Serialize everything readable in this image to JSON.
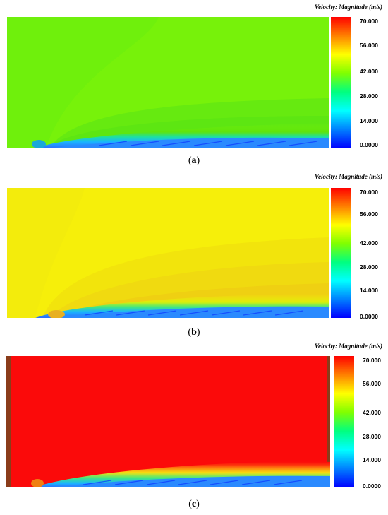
{
  "panels": [
    {
      "id": "a",
      "colorbar_title": "Velocity: Magnitude (m/s)",
      "ticks": [
        "70.000",
        "56.000",
        "42.000",
        "28.000",
        "14.000",
        "0.0000"
      ],
      "caption_open": "(",
      "caption_letter": "a",
      "caption_close": ")",
      "freestream_color": "#77f20a"
    },
    {
      "id": "b",
      "colorbar_title": "Velocity: Magnitude (m/s)",
      "ticks": [
        "70.000",
        "56.000",
        "42.000",
        "28.000",
        "14.000",
        "0.0000"
      ],
      "caption_open": "(",
      "caption_letter": "b",
      "caption_close": ")",
      "freestream_color": "#f6ef0a"
    },
    {
      "id": "c",
      "colorbar_title": "Velocity: Magnitude (m/s)",
      "ticks": [
        "70.000",
        "56.000",
        "42.000",
        "28.000",
        "14.000",
        "0.0000"
      ],
      "caption_open": "(",
      "caption_letter": "c",
      "caption_close": ")",
      "freestream_color": "#fb0a0a"
    }
  ],
  "colorbar_colors": [
    "#ff0000",
    "#ff8000",
    "#ffff00",
    "#80ff00",
    "#00ff80",
    "#00ffff",
    "#0080ff",
    "#0000ff"
  ]
}
